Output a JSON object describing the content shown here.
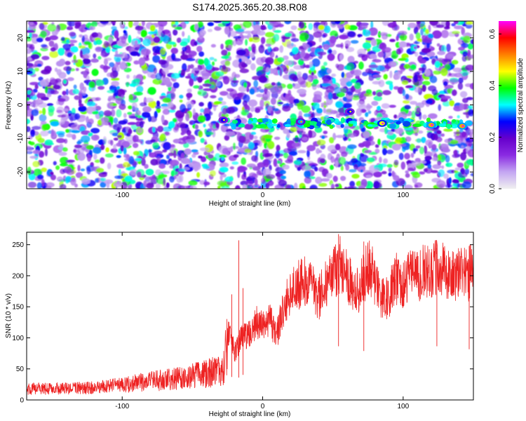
{
  "title": "S174.2025.365.20.38.R08",
  "chart_data": [
    {
      "type": "heatmap",
      "xlabel": "Height of straight line (km)",
      "ylabel": "Frequency (Hz)",
      "xlim": [
        -168,
        150
      ],
      "ylim": [
        -25,
        25
      ],
      "x_ticks": [
        -100,
        0,
        100
      ],
      "y_ticks": [
        -20,
        -10,
        0,
        10,
        20
      ],
      "colorbar": {
        "label": "Normalized spectral amplitude",
        "range": [
          0.0,
          0.65
        ],
        "ticks": [
          0.0,
          0.2,
          0.4,
          0.6
        ],
        "colors": [
          "#f0f0f0",
          "#c4a6f2",
          "#8a2be2",
          "#6600cc",
          "#0000ff",
          "#00ffff",
          "#00ff00",
          "#ffff00",
          "#ff8000",
          "#ff0000",
          "#ff00ff"
        ]
      },
      "signal_band": {
        "x_range": [
          -32,
          150
        ],
        "frequency": -5.5
      },
      "hot_spots": [
        {
          "x": -28,
          "y": -4.5,
          "amp": 0.25
        },
        {
          "x": 27,
          "y": -5,
          "amp": 0.3
        },
        {
          "x": 62,
          "y": -2,
          "amp": 0.25
        },
        {
          "x": 85,
          "y": -5.5,
          "amp": 0.45
        },
        {
          "x": 120,
          "y": -6,
          "amp": 0.5
        },
        {
          "x": 142,
          "y": -6.3,
          "amp": 0.5
        }
      ]
    },
    {
      "type": "line",
      "xlabel": "Height of straight line (km)",
      "ylabel": "SNR (10 * v/v)",
      "xlim": [
        -168,
        150
      ],
      "ylim": [
        0,
        270
      ],
      "x_ticks": [
        -100,
        0,
        100
      ],
      "y_ticks": [
        0,
        50,
        100,
        150,
        200,
        250
      ],
      "color": "#ee2222",
      "trend": [
        [
          -168,
          18
        ],
        [
          -140,
          18
        ],
        [
          -120,
          20
        ],
        [
          -100,
          24
        ],
        [
          -80,
          30
        ],
        [
          -60,
          35
        ],
        [
          -45,
          40
        ],
        [
          -35,
          45
        ],
        [
          -28,
          50
        ],
        [
          -24,
          110
        ],
        [
          -20,
          75
        ],
        [
          -15,
          100
        ],
        [
          -10,
          105
        ],
        [
          -5,
          125
        ],
        [
          0,
          120
        ],
        [
          5,
          130
        ],
        [
          10,
          105
        ],
        [
          15,
          150
        ],
        [
          20,
          175
        ],
        [
          25,
          185
        ],
        [
          30,
          190
        ],
        [
          35,
          180
        ],
        [
          40,
          165
        ],
        [
          45,
          185
        ],
        [
          50,
          200
        ],
        [
          55,
          220
        ],
        [
          60,
          205
        ],
        [
          65,
          170
        ],
        [
          70,
          185
        ],
        [
          75,
          215
        ],
        [
          80,
          195
        ],
        [
          85,
          160
        ],
        [
          90,
          170
        ],
        [
          95,
          195
        ],
        [
          100,
          185
        ],
        [
          105,
          205
        ],
        [
          110,
          195
        ],
        [
          115,
          210
        ],
        [
          120,
          200
        ],
        [
          125,
          220
        ],
        [
          130,
          205
        ],
        [
          135,
          200
        ],
        [
          140,
          205
        ],
        [
          145,
          200
        ],
        [
          150,
          210
        ]
      ],
      "spikes": [
        {
          "x": -17,
          "y": 257
        },
        {
          "x": -22,
          "y": 170
        },
        {
          "x": -14,
          "y": 180
        },
        {
          "x": 54,
          "y": 267
        },
        {
          "x": 72,
          "y": 255
        },
        {
          "x": 124,
          "y": 245
        },
        {
          "x": 147,
          "y": 248
        }
      ]
    }
  ]
}
